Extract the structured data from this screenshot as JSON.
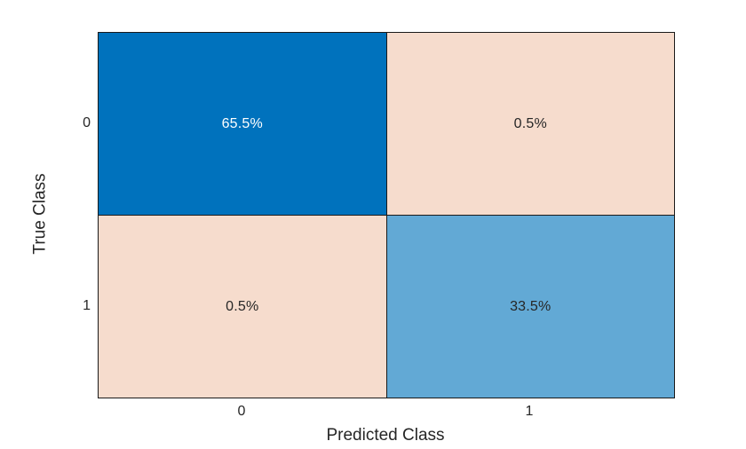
{
  "figure": {
    "background_color": "#ffffff",
    "axis_text_color": "#262626",
    "grid_line_color": "#1a1a1a"
  },
  "chart_data": {
    "type": "heatmap",
    "subtype": "confusion-matrix",
    "title": "",
    "xlabel": "Predicted Class",
    "ylabel": "True Class",
    "x_categories": [
      "0",
      "1"
    ],
    "y_categories": [
      "0",
      "1"
    ],
    "values_percent": [
      [
        65.5,
        0.5
      ],
      [
        0.5,
        33.5
      ]
    ],
    "diagonal_color": "#0072bd",
    "off_diagonal_color": "#f6dccd",
    "cells": [
      {
        "true_class": "0",
        "predicted_class": "0",
        "label": "65.5%",
        "bg": "#0072bd",
        "fg": "#ffffff"
      },
      {
        "true_class": "0",
        "predicted_class": "1",
        "label": "0.5%",
        "bg": "#f6dccd",
        "fg": "#262626"
      },
      {
        "true_class": "1",
        "predicted_class": "0",
        "label": "0.5%",
        "bg": "#f6dccd",
        "fg": "#262626"
      },
      {
        "true_class": "1",
        "predicted_class": "1",
        "label": "33.5%",
        "bg": "#62a9d5",
        "fg": "#262626"
      }
    ]
  }
}
